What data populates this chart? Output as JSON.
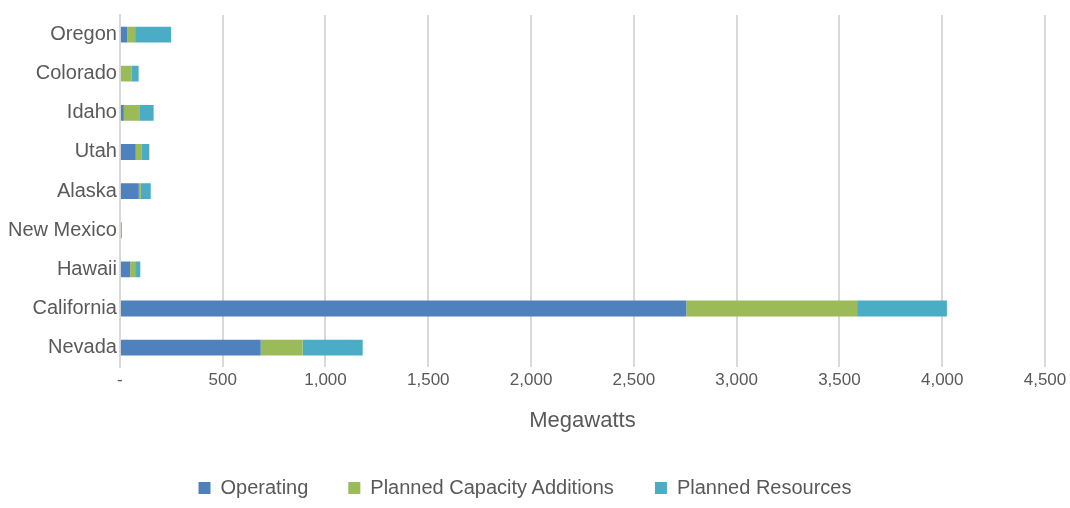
{
  "chart_data": {
    "type": "bar",
    "orientation": "horizontal",
    "stacked": true,
    "xlabel": "Megawatts",
    "categories": [
      "Oregon",
      "Colorado",
      "Idaho",
      "Utah",
      "Alaska",
      "New Mexico",
      "Hawaii",
      "California",
      "Nevada"
    ],
    "series": [
      {
        "name": "Operating",
        "color": "#4f81bd",
        "values": [
          36,
          0,
          19,
          77,
          92,
          0,
          50,
          2755,
          685
        ]
      },
      {
        "name": "Planned Capacity Additions",
        "color": "#9bbb59",
        "values": [
          38,
          58,
          75,
          27,
          10,
          10,
          24,
          831,
          204
        ]
      },
      {
        "name": "Planned Resources",
        "color": "#4bacc6",
        "values": [
          175,
          33,
          70,
          39,
          48,
          0,
          25,
          437,
          292
        ]
      }
    ],
    "xlim": [
      0,
      4500
    ],
    "xticks": [
      {
        "value": 0,
        "label": "-"
      },
      {
        "value": 500,
        "label": "500"
      },
      {
        "value": 1000,
        "label": "1,000"
      },
      {
        "value": 1500,
        "label": "1,500"
      },
      {
        "value": 2000,
        "label": "2,000"
      },
      {
        "value": 2500,
        "label": "2,500"
      },
      {
        "value": 3000,
        "label": "3,000"
      },
      {
        "value": 3500,
        "label": "3,500"
      },
      {
        "value": 4000,
        "label": "4,000"
      },
      {
        "value": 4500,
        "label": "4,500"
      }
    ],
    "grid": "x",
    "legend": "bottom"
  }
}
